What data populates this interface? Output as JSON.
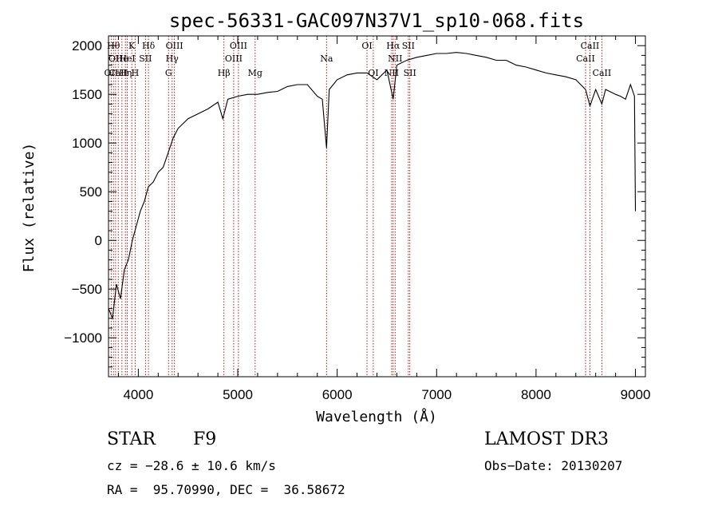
{
  "chart_data": {
    "type": "line",
    "title": "spec-56331-GAC097N37V1_sp10-068.fits",
    "xlabel": "Wavelength (Å)",
    "ylabel": "Flux (relative)",
    "xlim": [
      3700,
      9100
    ],
    "ylim": [
      -1400,
      2100
    ],
    "x_ticks": [
      4000,
      5000,
      6000,
      7000,
      8000,
      9000
    ],
    "x_tick_labels": [
      "4000",
      "5000",
      "6000",
      "7000",
      "8000",
      "9000"
    ],
    "y_ticks": [
      -1000,
      -500,
      0,
      500,
      1000,
      1500,
      2000
    ],
    "y_tick_labels": [
      "−1000",
      "−500",
      "0",
      "500",
      "1000",
      "1500",
      "2000"
    ],
    "series": [
      {
        "name": "flux",
        "x": [
          3700,
          3740,
          3780,
          3820,
          3860,
          3900,
          3940,
          3980,
          4020,
          4060,
          4100,
          4150,
          4200,
          4250,
          4300,
          4350,
          4400,
          4500,
          4600,
          4700,
          4800,
          4850,
          4900,
          5000,
          5100,
          5200,
          5300,
          5400,
          5500,
          5600,
          5700,
          5800,
          5850,
          5893,
          5920,
          6000,
          6100,
          6200,
          6300,
          6400,
          6500,
          6563,
          6600,
          6700,
          6800,
          6900,
          7000,
          7100,
          7200,
          7300,
          7400,
          7500,
          7600,
          7700,
          7800,
          7900,
          8000,
          8100,
          8200,
          8300,
          8400,
          8498,
          8542,
          8600,
          8662,
          8700,
          8800,
          8850,
          8900,
          8950,
          8990,
          9000
        ],
        "y": [
          -700,
          -800,
          -450,
          -600,
          -300,
          -200,
          0,
          150,
          300,
          400,
          550,
          600,
          700,
          750,
          900,
          1050,
          1150,
          1250,
          1300,
          1350,
          1420,
          1250,
          1450,
          1480,
          1500,
          1500,
          1520,
          1530,
          1580,
          1600,
          1600,
          1480,
          1450,
          950,
          1550,
          1650,
          1700,
          1720,
          1720,
          1650,
          1750,
          1450,
          1800,
          1850,
          1880,
          1900,
          1920,
          1920,
          1930,
          1920,
          1900,
          1880,
          1850,
          1850,
          1800,
          1780,
          1750,
          1720,
          1700,
          1680,
          1650,
          1550,
          1380,
          1550,
          1400,
          1550,
          1500,
          1480,
          1450,
          1600,
          1480,
          300
        ]
      }
    ],
    "line_markers": [
      {
        "wl": 3727,
        "label": "OII",
        "row": 3
      },
      {
        "wl": 3750,
        "label": "Hθ",
        "row": 1
      },
      {
        "wl": 3771,
        "label": "OII",
        "row": 2
      },
      {
        "wl": 3798,
        "label": "CaII",
        "row": 3
      },
      {
        "wl": 3835,
        "label": "He",
        "row": 2
      },
      {
        "wl": 3870,
        "label": "Hη",
        "row": 3
      },
      {
        "wl": 3889,
        "label": "HeI",
        "row": 2
      },
      {
        "wl": 3934,
        "label": "K",
        "row": 1
      },
      {
        "wl": 3968,
        "label": "H",
        "row": 3
      },
      {
        "wl": 4072,
        "label": "SII",
        "row": 2
      },
      {
        "wl": 4102,
        "label": "Hδ",
        "row": 1
      },
      {
        "wl": 4304,
        "label": "G",
        "row": 3
      },
      {
        "wl": 4340,
        "label": "Hγ",
        "row": 2
      },
      {
        "wl": 4363,
        "label": "OIII",
        "row": 1
      },
      {
        "wl": 4861,
        "label": "Hβ",
        "row": 3
      },
      {
        "wl": 4959,
        "label": "OIII",
        "row": 2
      },
      {
        "wl": 5007,
        "label": "OIII",
        "row": 1
      },
      {
        "wl": 5175,
        "label": "Mg",
        "row": 3
      },
      {
        "wl": 5893,
        "label": "Na",
        "row": 2
      },
      {
        "wl": 6300,
        "label": "OI",
        "row": 1
      },
      {
        "wl": 6363,
        "label": "OI",
        "row": 3
      },
      {
        "wl": 6548,
        "label": "NII",
        "row": 3
      },
      {
        "wl": 6563,
        "label": "Hα",
        "row": 1
      },
      {
        "wl": 6583,
        "label": "NII",
        "row": 2
      },
      {
        "wl": 6716,
        "label": "SII",
        "row": 1
      },
      {
        "wl": 6731,
        "label": "SII",
        "row": 3
      },
      {
        "wl": 8498,
        "label": "CaII",
        "row": 2
      },
      {
        "wl": 8542,
        "label": "CaII",
        "row": 1
      },
      {
        "wl": 8662,
        "label": "CaII",
        "row": 3
      }
    ]
  },
  "info": {
    "class": "STAR",
    "subclass": "F9",
    "survey": "LAMOST DR3",
    "cz": "cz = −28.6 ± 10.6 km/s",
    "obs_date": "Obs−Date: 20130207",
    "coords": "RA =  95.70990, DEC =  36.58672"
  }
}
